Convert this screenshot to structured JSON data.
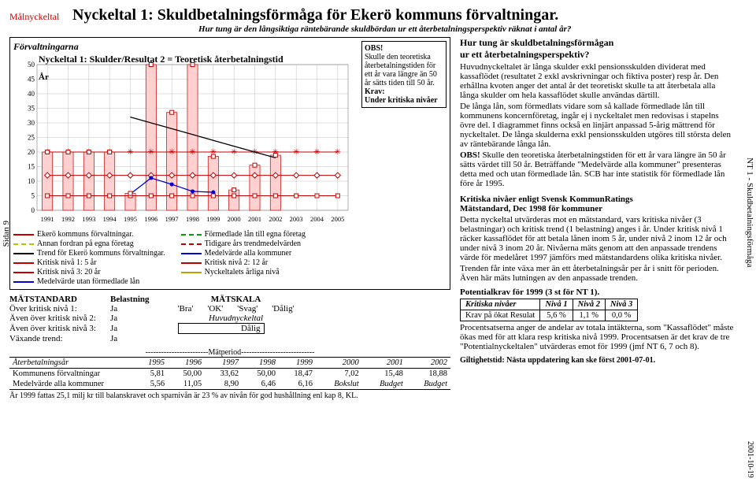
{
  "sideLabel": "Sidan 9",
  "rightSideLabel": "NT 1 - Skuldbetalningsförmåga",
  "rightSideDate": "2001-10-19",
  "mal": "Målnyckeltal",
  "mainTitle": "Nyckeltal 1: Skuldbetalningsförmåga för Ekerö kommuns förvaltningar.",
  "subtitle": "Hur tung är den långsiktiga räntebärande skuldbördan ur ett återbetalningsperspektiv räknat i antal år?",
  "chart": {
    "topLabel": "Förvaltningarna",
    "title": "Nyckeltal 1: Skulder/Resultat 2 = Teoretisk återbetalningstid",
    "yLabel": "År",
    "ylim": [
      0,
      50
    ],
    "ytick_step": 5,
    "years": [
      1991,
      1992,
      1993,
      1994,
      1995,
      1996,
      1997,
      1998,
      1999,
      2000,
      2001,
      2002,
      2003,
      2004,
      2005
    ],
    "series": {
      "ekero": {
        "label": "Ekerö kommuns förvaltningar.",
        "color": "#c00000",
        "values": [
          20,
          20,
          20,
          20,
          5.8,
          50,
          33.6,
          50,
          18.5,
          7.0,
          15.5,
          18.9,
          null,
          null,
          null
        ]
      },
      "annan": {
        "label": "Annan fordran på egna företag",
        "color": "#c0c000",
        "dash": true,
        "values": null
      },
      "trend": {
        "label": "Trend för Ekerö kommuns förvaltningar.",
        "color": "#000",
        "values": [
          null,
          null,
          null,
          null,
          32,
          30,
          28,
          26,
          24,
          22,
          20,
          18,
          null,
          null,
          null
        ]
      },
      "niv1": {
        "label": "Kritisk nivå 1: 5 år",
        "color": "#c00000",
        "marker": "square",
        "values": 5
      },
      "niv3": {
        "label": "Kritisk nivå 3: 20 år",
        "color": "#c00000",
        "marker": "asterisk",
        "values": 20
      },
      "medel_u": {
        "label": "Medelvärde utan förmedlade lån",
        "color": "#0000d0",
        "values": null
      },
      "formed": {
        "label": "Förmedlade lån till egna företag",
        "color": "#00a000",
        "dash": true,
        "values": null
      },
      "tid_trend": {
        "label": "Tidigare års trendmedelvärden",
        "color": "#c00000",
        "dash": true,
        "values": null
      },
      "medel_a": {
        "label": "Medelvärde alla kommuner",
        "color": "#0000d0",
        "values": [
          null,
          null,
          null,
          null,
          5.6,
          11.1,
          8.9,
          6.5,
          6.2,
          null,
          null,
          null,
          null,
          null,
          null
        ]
      },
      "niv2": {
        "label": "Kritisk nivå 2: 12 år",
        "color": "#c00000",
        "marker": "diamond",
        "values": 12
      },
      "arlig": {
        "label": "Nyckeltalets årliga nivå",
        "color": "#c0a000",
        "values": null
      }
    },
    "obs": {
      "h": "OBS!",
      "t": "Skulle den teoretiska återbetalningstiden för ett år vara längre än 50 år sätts tiden till 50 år.",
      "k": "Krav:",
      "k2": "Under kritiska nivåer"
    },
    "colors": {
      "grid": "#c0c0c0",
      "bg": "#ffffff"
    }
  },
  "matstandard": {
    "head1": "MÄTSTANDARD",
    "head2": "Belastning",
    "head3": "MÄTSKALA",
    "rows": [
      {
        "l": "Över kritisk nivå 1:",
        "v": "Ja"
      },
      {
        "l": "Även över kritisk nivå 2:",
        "v": "Ja"
      },
      {
        "l": "Även över kritisk nivå 3:",
        "v": "Ja"
      },
      {
        "l": "Växande trend:",
        "v": "Ja"
      }
    ],
    "scale": [
      "'Bra'",
      "'OK'",
      "'Svag'",
      "'Dålig'"
    ],
    "huvud": "Huvudnyckeltal",
    "result": "Dålig"
  },
  "dataTable": {
    "matperiod": "------------------------Mätperiod----------------------------",
    "rowHead": "Återbetalningsår",
    "years": [
      "1995",
      "1996",
      "1997",
      "1998",
      "1999",
      "2000",
      "2001",
      "2002"
    ],
    "rows": [
      {
        "l": "Kommunens förvaltningar",
        "v": [
          "5,81",
          "50,00",
          "33,62",
          "50,00",
          "18,47",
          "7,02",
          "15,48",
          "18,88"
        ]
      },
      {
        "l": "Medelvärde alla kommuner",
        "v": [
          "5,56",
          "11,05",
          "8,90",
          "6,46",
          "6,16",
          "Bokslut",
          "Budget",
          "Budget"
        ]
      }
    ],
    "footnote": "År 1999 fattas 25,1 milj kr till balanskravet och sparnivån är 23 % av nivån för god hushållning enl kap 8, KL."
  },
  "right": {
    "h1": "Hur tung är skuldbetalningsförmågan",
    "h2": "ur ett återbetalningsperspektiv?",
    "p1": "Huvudnyckeltalet är långa skulder exkl pensionsskulden dividerat med kassaflödet (resultatet 2 exkl avskrivningar och fiktiva poster) resp år. Den erhållna kvoten anger det antal år det teoretiskt skulle ta att återbetala alla långa skulder om hela kassaflödet skulle användas därtill.",
    "p2": "De långa lån, som förmedlats vidare som så kallade förmedlade lån till kommunens koncernföretag, ingår ej i nyckeltalet men redovisas i stapelns övre del. I diagrammet finns också en linjärt anpassad 5-årig mättrend för nyckeltalet. De långa skulderna exkl pensionsskulden utgöres till största delen av räntebärande långa lån.",
    "p3a": "OBS!",
    "p3": " Skulle den teoretiska återbetalningstiden för ett år vara längre än 50 år sätts värdet till 50 år. Beträffande \"Medelvärde alla kommuner\" presenteras detta med och utan förmedlade lån. SCB har inte statistik för förmedlade lån före år 1995.",
    "h3": "Kritiska nivåer enligt Svensk KommunRatings",
    "h3b": "Mätstandard, Dec 1998 för kommuner",
    "p4": "Detta nyckeltal utvärderas mot en mätstandard, vars kritiska nivåer (3 belastningar) och kritisk trend (1 belastning) anges i år. Under kritisk nivå 1 räcker kassaflödet för att betala lånen inom 5 år, under nivå 2 inom 12 år och under nivå 3 inom 20 år. Nivåerna mäts genom att den anpassade trendens värde för medelåret 1997 jämförs med mätstandardens olika kritiska nivåer.",
    "p5": "Trenden får inte växa mer än ett återbetalningsår per år i snitt för perioden. Även här mäts lutningen av den anpassade trenden.",
    "pot_h": "Potentialkrav för 1999 (3 st för NT 1).",
    "pot_cols": [
      "Kritiska nivåer",
      "Nivå 1",
      "Nivå 2",
      "Nivå 3"
    ],
    "pot_row": [
      "Krav på ökat Resulat",
      "5,6 %",
      "1,1 %",
      "0,0 %"
    ],
    "p6": "Procentsatserna anger de andelar av totala intäkterna, som \"Kassaflödet\" måste ökas med för att klara resp kritiska nivå 1999. Procentsatsen är det krav de tre \"Potentialnyckeltalen\" utvärderas emot för 1999 (jmf NT 6, 7 och 8).",
    "gilt": "Giltighetstid: Nästa uppdatering kan ske först 2001-07-01."
  }
}
